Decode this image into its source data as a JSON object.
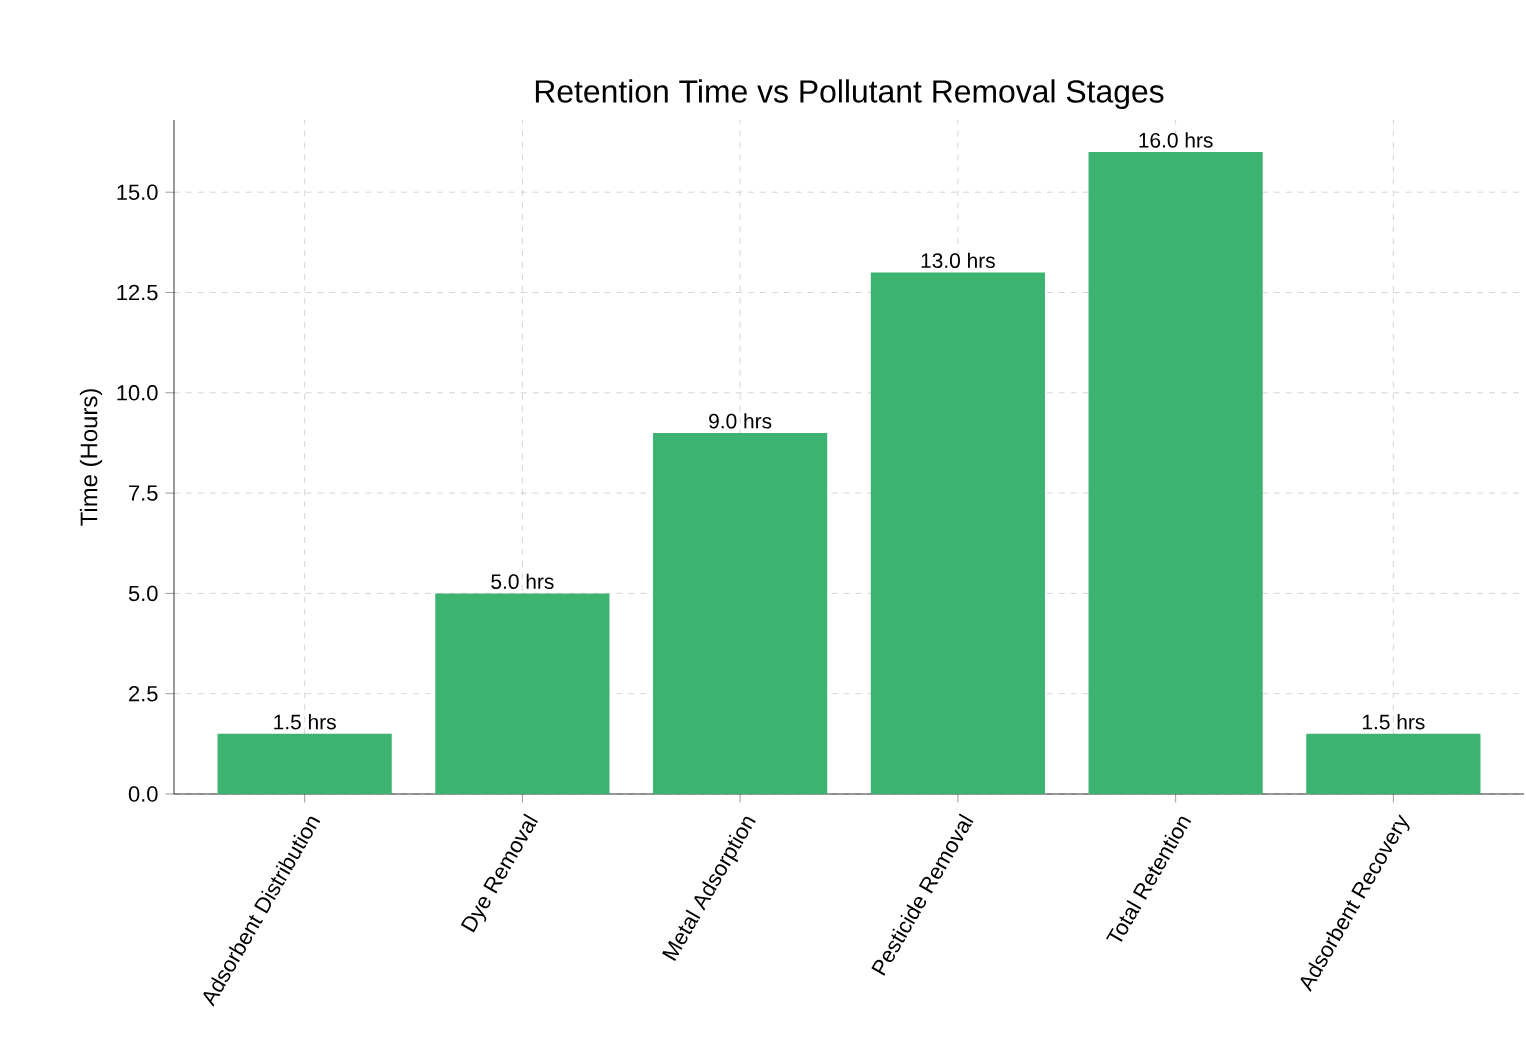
{
  "chart_data": {
    "type": "bar",
    "title": "Retention Time vs Pollutant Removal Stages",
    "ylabel": "Time (Hours)",
    "categories": [
      "Adsorbent Distribution",
      "Dye Removal",
      "Metal Adsorption",
      "Pesticide Removal",
      "Total Retention",
      "Adsorbent Recovery"
    ],
    "values": [
      1.5,
      5.0,
      9.0,
      13.0,
      16.0,
      1.5
    ],
    "value_labels": [
      "1.5 hrs",
      "5.0 hrs",
      "9.0 hrs",
      "13.0 hrs",
      "16.0 hrs",
      "1.5 hrs"
    ],
    "color": "#3cb371",
    "ylim": [
      0,
      16.8
    ],
    "yticks": [
      {
        "value": 0,
        "label": "0.0"
      },
      {
        "value": 2.5,
        "label": "2.5"
      },
      {
        "value": 5,
        "label": "5.0"
      },
      {
        "value": 7.5,
        "label": "7.5"
      },
      {
        "value": 10,
        "label": "10.0"
      },
      {
        "value": 12.5,
        "label": "12.5"
      },
      {
        "value": 15,
        "label": "15.0"
      }
    ],
    "grid": true
  }
}
